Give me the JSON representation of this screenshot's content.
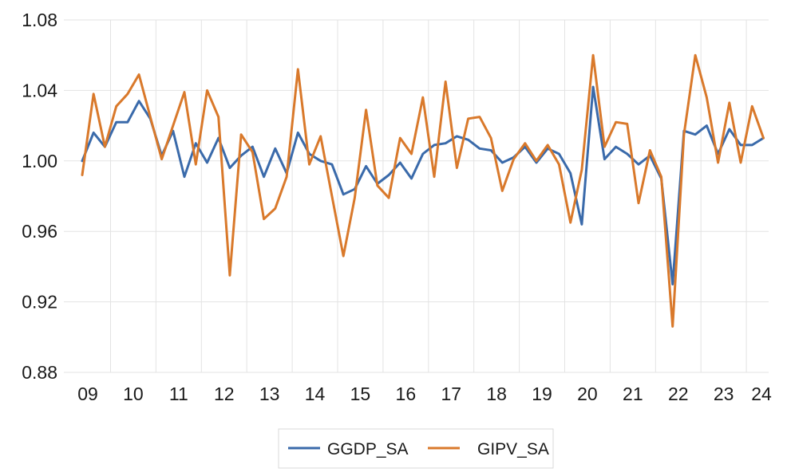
{
  "chart_data": {
    "type": "line",
    "title": "",
    "xlabel": "",
    "ylabel": "",
    "ylim": [
      0.88,
      1.08
    ],
    "y_ticks": [
      "0.88",
      "0.92",
      "0.96",
      "1.00",
      "1.04",
      "1.08"
    ],
    "x_ticks": [
      "09",
      "10",
      "11",
      "12",
      "13",
      "14",
      "15",
      "16",
      "17",
      "18",
      "19",
      "20",
      "21",
      "22",
      "23",
      "24"
    ],
    "x_start": "2009Q1",
    "frequency": "quarterly",
    "grid": "horizontal and vertical",
    "legend_position": "bottom",
    "series": [
      {
        "name": "GGDP_SA",
        "color": "#3a6aaa",
        "values": [
          1.0,
          1.016,
          1.008,
          1.022,
          1.022,
          1.034,
          1.024,
          1.003,
          1.017,
          0.991,
          1.01,
          0.999,
          1.013,
          0.996,
          1.003,
          1.008,
          0.991,
          1.007,
          0.993,
          1.016,
          1.004,
          1.0,
          0.998,
          0.981,
          0.984,
          0.997,
          0.987,
          0.992,
          0.999,
          0.99,
          1.004,
          1.009,
          1.01,
          1.014,
          1.012,
          1.007,
          1.006,
          0.999,
          1.002,
          1.008,
          0.999,
          1.007,
          1.004,
          0.993,
          0.964,
          1.042,
          1.001,
          1.008,
          1.004,
          0.998,
          1.003,
          0.99,
          0.93,
          1.017,
          1.015,
          1.02,
          1.004,
          1.018,
          1.009,
          1.009,
          1.013
        ]
      },
      {
        "name": "GIPV_SA",
        "color": "#d9792b",
        "values": [
          0.992,
          1.038,
          1.008,
          1.031,
          1.038,
          1.049,
          1.025,
          1.001,
          1.02,
          1.039,
          0.998,
          1.04,
          1.025,
          0.935,
          1.015,
          1.005,
          0.967,
          0.973,
          0.991,
          1.052,
          0.998,
          1.014,
          0.98,
          0.946,
          0.979,
          1.029,
          0.986,
          0.979,
          1.013,
          1.004,
          1.036,
          0.991,
          1.045,
          0.996,
          1.024,
          1.025,
          1.013,
          0.983,
          1.001,
          1.01,
          1.0,
          1.009,
          0.998,
          0.965,
          0.995,
          1.06,
          1.008,
          1.022,
          1.021,
          0.976,
          1.006,
          0.991,
          0.906,
          1.015,
          1.06,
          1.036,
          0.999,
          1.033,
          0.999,
          1.031,
          1.013
        ]
      }
    ]
  }
}
